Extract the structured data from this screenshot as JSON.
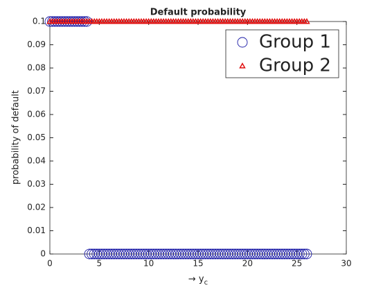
{
  "chart_data": {
    "type": "scatter",
    "title": "Default probability",
    "xlabel": "→ y",
    "xlabel_subscript": "c",
    "ylabel": "probability of default",
    "x": [
      0,
      0.25,
      0.5,
      0.75,
      1,
      1.25,
      1.5,
      1.75,
      2,
      2.25,
      2.5,
      2.75,
      3,
      3.25,
      3.5,
      3.75,
      4,
      4.25,
      4.5,
      4.75,
      5,
      5.25,
      5.5,
      5.75,
      6,
      6.25,
      6.5,
      6.75,
      7,
      7.25,
      7.5,
      7.75,
      8,
      8.25,
      8.5,
      8.75,
      9,
      9.25,
      9.5,
      9.75,
      10,
      10.25,
      10.5,
      10.75,
      11,
      11.25,
      11.5,
      11.75,
      12,
      12.25,
      12.5,
      12.75,
      13,
      13.25,
      13.5,
      13.75,
      14,
      14.25,
      14.5,
      14.75,
      15,
      15.25,
      15.5,
      15.75,
      16,
      16.25,
      16.5,
      16.75,
      17,
      17.25,
      17.5,
      17.75,
      18,
      18.25,
      18.5,
      18.75,
      19,
      19.25,
      19.5,
      19.75,
      20,
      20.25,
      20.5,
      20.75,
      21,
      21.25,
      21.5,
      21.75,
      22,
      22.25,
      22.5,
      22.75,
      23,
      23.25,
      23.5,
      23.75,
      24,
      24.25,
      24.5,
      24.75,
      25,
      25.25,
      25.5,
      25.75,
      26
    ],
    "series": [
      {
        "name": "Group 1",
        "color": "#1a1aa6",
        "marker": "circle",
        "values": [
          0.1,
          0.1,
          0.1,
          0.1,
          0.1,
          0.1,
          0.1,
          0.1,
          0.1,
          0.1,
          0.1,
          0.1,
          0.1,
          0.1,
          0.1,
          0.1,
          0,
          0,
          0,
          0,
          0,
          0,
          0,
          0,
          0,
          0,
          0,
          0,
          0,
          0,
          0,
          0,
          0,
          0,
          0,
          0,
          0,
          0,
          0,
          0,
          0,
          0,
          0,
          0,
          0,
          0,
          0,
          0,
          0,
          0,
          0,
          0,
          0,
          0,
          0,
          0,
          0,
          0,
          0,
          0,
          0,
          0,
          0,
          0,
          0,
          0,
          0,
          0,
          0,
          0,
          0,
          0,
          0,
          0,
          0,
          0,
          0,
          0,
          0,
          0,
          0,
          0,
          0,
          0,
          0,
          0,
          0,
          0,
          0,
          0,
          0,
          0,
          0,
          0,
          0,
          0,
          0,
          0,
          0,
          0,
          0,
          0,
          0,
          0,
          0
        ]
      },
      {
        "name": "Group 2",
        "color": "#e01010",
        "marker": "triangle",
        "values": [
          0.1,
          0.1,
          0.1,
          0.1,
          0.1,
          0.1,
          0.1,
          0.1,
          0.1,
          0.1,
          0.1,
          0.1,
          0.1,
          0.1,
          0.1,
          0.1,
          0.1,
          0.1,
          0.1,
          0.1,
          0.1,
          0.1,
          0.1,
          0.1,
          0.1,
          0.1,
          0.1,
          0.1,
          0.1,
          0.1,
          0.1,
          0.1,
          0.1,
          0.1,
          0.1,
          0.1,
          0.1,
          0.1,
          0.1,
          0.1,
          0.1,
          0.1,
          0.1,
          0.1,
          0.1,
          0.1,
          0.1,
          0.1,
          0.1,
          0.1,
          0.1,
          0.1,
          0.1,
          0.1,
          0.1,
          0.1,
          0.1,
          0.1,
          0.1,
          0.1,
          0.1,
          0.1,
          0.1,
          0.1,
          0.1,
          0.1,
          0.1,
          0.1,
          0.1,
          0.1,
          0.1,
          0.1,
          0.1,
          0.1,
          0.1,
          0.1,
          0.1,
          0.1,
          0.1,
          0.1,
          0.1,
          0.1,
          0.1,
          0.1,
          0.1,
          0.1,
          0.1,
          0.1,
          0.1,
          0.1,
          0.1,
          0.1,
          0.1,
          0.1,
          0.1,
          0.1,
          0.1,
          0.1,
          0.1,
          0.1,
          0.1,
          0.1,
          0.1,
          0.1,
          0.1
        ]
      }
    ],
    "xlim": [
      0,
      30
    ],
    "xticks": [
      0,
      5,
      10,
      15,
      20,
      25,
      30
    ],
    "ylim": [
      0,
      0.1
    ],
    "yticks": [
      0,
      0.01,
      0.02,
      0.03,
      0.04,
      0.05,
      0.06,
      0.07,
      0.08,
      0.09,
      0.1
    ],
    "grid": false,
    "legend": "northeast"
  }
}
